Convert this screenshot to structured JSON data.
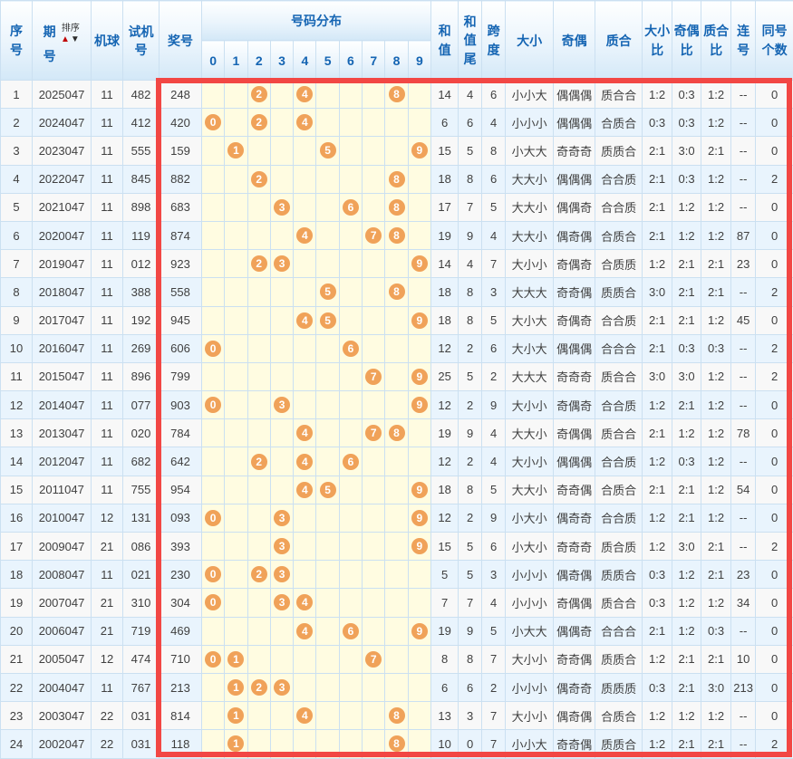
{
  "table": {
    "headers": {
      "seq": "序号",
      "period_char1": "期",
      "period_char2": "号",
      "sort_label": "排序",
      "sort_up": "▲",
      "sort_down": "▼",
      "machine": "机球",
      "test_number": "试机号",
      "prize_number": "奖号",
      "distribution": "号码分布",
      "digits": [
        "0",
        "1",
        "2",
        "3",
        "4",
        "5",
        "6",
        "7",
        "8",
        "9"
      ],
      "sum": "和值",
      "sum_tail": "和值尾",
      "span": "跨度",
      "size": "大小",
      "parity": "奇偶",
      "prime": "质合",
      "size_ratio": "大小比",
      "parity_ratio": "奇偶比",
      "prime_ratio": "质合比",
      "consecutive": "连号",
      "same_count": "同号个数"
    },
    "rows": [
      {
        "seq": "1",
        "period": "2025047",
        "machine": "11",
        "test": "482",
        "prize": "248",
        "dist": [
          2,
          4,
          8
        ],
        "sum": "14",
        "sumTail": "4",
        "span": "6",
        "size": "小小大",
        "parity": "偶偶偶",
        "prime": "质合合",
        "sizeRatio": "1:2",
        "parityRatio": "0:3",
        "primeRatio": "1:2",
        "consec": "--",
        "same": "0"
      },
      {
        "seq": "2",
        "period": "2024047",
        "machine": "11",
        "test": "412",
        "prize": "420",
        "dist": [
          0,
          2,
          4
        ],
        "sum": "6",
        "sumTail": "6",
        "span": "4",
        "size": "小小小",
        "parity": "偶偶偶",
        "prime": "合质合",
        "sizeRatio": "0:3",
        "parityRatio": "0:3",
        "primeRatio": "1:2",
        "consec": "--",
        "same": "0"
      },
      {
        "seq": "3",
        "period": "2023047",
        "machine": "11",
        "test": "555",
        "prize": "159",
        "dist": [
          1,
          5,
          9
        ],
        "sum": "15",
        "sumTail": "5",
        "span": "8",
        "size": "小大大",
        "parity": "奇奇奇",
        "prime": "质质合",
        "sizeRatio": "2:1",
        "parityRatio": "3:0",
        "primeRatio": "2:1",
        "consec": "--",
        "same": "0"
      },
      {
        "seq": "4",
        "period": "2022047",
        "machine": "11",
        "test": "845",
        "prize": "882",
        "dist": [
          2,
          8
        ],
        "sum": "18",
        "sumTail": "8",
        "span": "6",
        "size": "大大小",
        "parity": "偶偶偶",
        "prime": "合合质",
        "sizeRatio": "2:1",
        "parityRatio": "0:3",
        "primeRatio": "1:2",
        "consec": "--",
        "same": "2"
      },
      {
        "seq": "5",
        "period": "2021047",
        "machine": "11",
        "test": "898",
        "prize": "683",
        "dist": [
          3,
          6,
          8
        ],
        "sum": "17",
        "sumTail": "7",
        "span": "5",
        "size": "大大小",
        "parity": "偶偶奇",
        "prime": "合合质",
        "sizeRatio": "2:1",
        "parityRatio": "1:2",
        "primeRatio": "1:2",
        "consec": "--",
        "same": "0"
      },
      {
        "seq": "6",
        "period": "2020047",
        "machine": "11",
        "test": "119",
        "prize": "874",
        "dist": [
          4,
          7,
          8
        ],
        "sum": "19",
        "sumTail": "9",
        "span": "4",
        "size": "大大小",
        "parity": "偶奇偶",
        "prime": "合质合",
        "sizeRatio": "2:1",
        "parityRatio": "1:2",
        "primeRatio": "1:2",
        "consec": "87",
        "same": "0"
      },
      {
        "seq": "7",
        "period": "2019047",
        "machine": "11",
        "test": "012",
        "prize": "923",
        "dist": [
          2,
          3,
          9
        ],
        "sum": "14",
        "sumTail": "4",
        "span": "7",
        "size": "大小小",
        "parity": "奇偶奇",
        "prime": "合质质",
        "sizeRatio": "1:2",
        "parityRatio": "2:1",
        "primeRatio": "2:1",
        "consec": "23",
        "same": "0"
      },
      {
        "seq": "8",
        "period": "2018047",
        "machine": "11",
        "test": "388",
        "prize": "558",
        "dist": [
          5,
          8
        ],
        "sum": "18",
        "sumTail": "8",
        "span": "3",
        "size": "大大大",
        "parity": "奇奇偶",
        "prime": "质质合",
        "sizeRatio": "3:0",
        "parityRatio": "2:1",
        "primeRatio": "2:1",
        "consec": "--",
        "same": "2"
      },
      {
        "seq": "9",
        "period": "2017047",
        "machine": "11",
        "test": "192",
        "prize": "945",
        "dist": [
          4,
          5,
          9
        ],
        "sum": "18",
        "sumTail": "8",
        "span": "5",
        "size": "大小大",
        "parity": "奇偶奇",
        "prime": "合合质",
        "sizeRatio": "2:1",
        "parityRatio": "2:1",
        "primeRatio": "1:2",
        "consec": "45",
        "same": "0"
      },
      {
        "seq": "10",
        "period": "2016047",
        "machine": "11",
        "test": "269",
        "prize": "606",
        "dist": [
          0,
          6
        ],
        "sum": "12",
        "sumTail": "2",
        "span": "6",
        "size": "大小大",
        "parity": "偶偶偶",
        "prime": "合合合",
        "sizeRatio": "2:1",
        "parityRatio": "0:3",
        "primeRatio": "0:3",
        "consec": "--",
        "same": "2"
      },
      {
        "seq": "11",
        "period": "2015047",
        "machine": "11",
        "test": "896",
        "prize": "799",
        "dist": [
          7,
          9
        ],
        "sum": "25",
        "sumTail": "5",
        "span": "2",
        "size": "大大大",
        "parity": "奇奇奇",
        "prime": "质合合",
        "sizeRatio": "3:0",
        "parityRatio": "3:0",
        "primeRatio": "1:2",
        "consec": "--",
        "same": "2"
      },
      {
        "seq": "12",
        "period": "2014047",
        "machine": "11",
        "test": "077",
        "prize": "903",
        "dist": [
          0,
          3,
          9
        ],
        "sum": "12",
        "sumTail": "2",
        "span": "9",
        "size": "大小小",
        "parity": "奇偶奇",
        "prime": "合合质",
        "sizeRatio": "1:2",
        "parityRatio": "2:1",
        "primeRatio": "1:2",
        "consec": "--",
        "same": "0"
      },
      {
        "seq": "13",
        "period": "2013047",
        "machine": "11",
        "test": "020",
        "prize": "784",
        "dist": [
          4,
          7,
          8
        ],
        "sum": "19",
        "sumTail": "9",
        "span": "4",
        "size": "大大小",
        "parity": "奇偶偶",
        "prime": "质合合",
        "sizeRatio": "2:1",
        "parityRatio": "1:2",
        "primeRatio": "1:2",
        "consec": "78",
        "same": "0"
      },
      {
        "seq": "14",
        "period": "2012047",
        "machine": "11",
        "test": "682",
        "prize": "642",
        "dist": [
          2,
          4,
          6
        ],
        "sum": "12",
        "sumTail": "2",
        "span": "4",
        "size": "大小小",
        "parity": "偶偶偶",
        "prime": "合合质",
        "sizeRatio": "1:2",
        "parityRatio": "0:3",
        "primeRatio": "1:2",
        "consec": "--",
        "same": "0"
      },
      {
        "seq": "15",
        "period": "2011047",
        "machine": "11",
        "test": "755",
        "prize": "954",
        "dist": [
          4,
          5,
          9
        ],
        "sum": "18",
        "sumTail": "8",
        "span": "5",
        "size": "大大小",
        "parity": "奇奇偶",
        "prime": "合质合",
        "sizeRatio": "2:1",
        "parityRatio": "2:1",
        "primeRatio": "1:2",
        "consec": "54",
        "same": "0"
      },
      {
        "seq": "16",
        "period": "2010047",
        "machine": "12",
        "test": "131",
        "prize": "093",
        "dist": [
          0,
          3,
          9
        ],
        "sum": "12",
        "sumTail": "2",
        "span": "9",
        "size": "小大小",
        "parity": "偶奇奇",
        "prime": "合合质",
        "sizeRatio": "1:2",
        "parityRatio": "2:1",
        "primeRatio": "1:2",
        "consec": "--",
        "same": "0"
      },
      {
        "seq": "17",
        "period": "2009047",
        "machine": "21",
        "test": "086",
        "prize": "393",
        "dist": [
          3,
          9
        ],
        "sum": "15",
        "sumTail": "5",
        "span": "6",
        "size": "小大小",
        "parity": "奇奇奇",
        "prime": "质合质",
        "sizeRatio": "1:2",
        "parityRatio": "3:0",
        "primeRatio": "2:1",
        "consec": "--",
        "same": "2"
      },
      {
        "seq": "18",
        "period": "2008047",
        "machine": "11",
        "test": "021",
        "prize": "230",
        "dist": [
          0,
          2,
          3
        ],
        "sum": "5",
        "sumTail": "5",
        "span": "3",
        "size": "小小小",
        "parity": "偶奇偶",
        "prime": "质质合",
        "sizeRatio": "0:3",
        "parityRatio": "1:2",
        "primeRatio": "2:1",
        "consec": "23",
        "same": "0"
      },
      {
        "seq": "19",
        "period": "2007047",
        "machine": "21",
        "test": "310",
        "prize": "304",
        "dist": [
          0,
          3,
          4
        ],
        "sum": "7",
        "sumTail": "7",
        "span": "4",
        "size": "小小小",
        "parity": "奇偶偶",
        "prime": "质合合",
        "sizeRatio": "0:3",
        "parityRatio": "1:2",
        "primeRatio": "1:2",
        "consec": "34",
        "same": "0"
      },
      {
        "seq": "20",
        "period": "2006047",
        "machine": "21",
        "test": "719",
        "prize": "469",
        "dist": [
          4,
          6,
          9
        ],
        "sum": "19",
        "sumTail": "9",
        "span": "5",
        "size": "小大大",
        "parity": "偶偶奇",
        "prime": "合合合",
        "sizeRatio": "2:1",
        "parityRatio": "1:2",
        "primeRatio": "0:3",
        "consec": "--",
        "same": "0"
      },
      {
        "seq": "21",
        "period": "2005047",
        "machine": "12",
        "test": "474",
        "prize": "710",
        "dist": [
          0,
          1,
          7
        ],
        "sum": "8",
        "sumTail": "8",
        "span": "7",
        "size": "大小小",
        "parity": "奇奇偶",
        "prime": "质质合",
        "sizeRatio": "1:2",
        "parityRatio": "2:1",
        "primeRatio": "2:1",
        "consec": "10",
        "same": "0"
      },
      {
        "seq": "22",
        "period": "2004047",
        "machine": "11",
        "test": "767",
        "prize": "213",
        "dist": [
          1,
          2,
          3
        ],
        "sum": "6",
        "sumTail": "6",
        "span": "2",
        "size": "小小小",
        "parity": "偶奇奇",
        "prime": "质质质",
        "sizeRatio": "0:3",
        "parityRatio": "2:1",
        "primeRatio": "3:0",
        "consec": "213",
        "same": "0"
      },
      {
        "seq": "23",
        "period": "2003047",
        "machine": "22",
        "test": "031",
        "prize": "814",
        "dist": [
          1,
          4,
          8
        ],
        "sum": "13",
        "sumTail": "3",
        "span": "7",
        "size": "大小小",
        "parity": "偶奇偶",
        "prime": "合质合",
        "sizeRatio": "1:2",
        "parityRatio": "1:2",
        "primeRatio": "1:2",
        "consec": "--",
        "same": "0"
      },
      {
        "seq": "24",
        "period": "2002047",
        "machine": "22",
        "test": "031",
        "prize": "118",
        "dist": [
          1,
          8
        ],
        "sum": "10",
        "sumTail": "0",
        "span": "7",
        "size": "小小大",
        "parity": "奇奇偶",
        "prime": "质质合",
        "sizeRatio": "1:2",
        "parityRatio": "2:1",
        "primeRatio": "2:1",
        "consec": "--",
        "same": "2"
      }
    ]
  },
  "colors": {
    "header_text": "#1565B3",
    "ball": "#F0A259",
    "frame_red": "#F24744",
    "row_even_bg": "#E9F4FD",
    "row_odd_bg": "#F8F8F8",
    "dist_bg": "#FFFCE1",
    "grid_line": "#CBE0F1",
    "sort_up_arrow": "#C00000",
    "sort_down_arrow": "#2B2B2B"
  }
}
